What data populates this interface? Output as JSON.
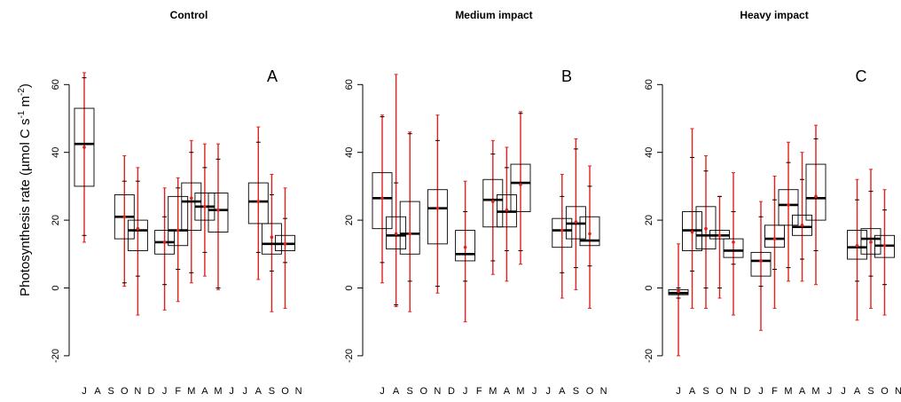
{
  "chart_data": {
    "type": "boxplot",
    "ylabel": {
      "main": "Photosynthesis rate (µmol C s",
      "sup1": "-1",
      "mid": " m",
      "sup2": "-2",
      "end": ")"
    },
    "ylim": [
      -25,
      75
    ],
    "yticks": [
      -20,
      0,
      20,
      40,
      60
    ],
    "box_color": "#000000",
    "mean_color": "#e0201b",
    "panels": [
      {
        "title": "Control",
        "letter": "A",
        "x_labels": [
          "J",
          "A",
          "S",
          "O",
          "N",
          "D",
          "J",
          "F",
          "M",
          "A",
          "M",
          "J",
          "J",
          "A",
          "S",
          "O",
          "N"
        ],
        "boxes": [
          {
            "i": 0,
            "q1": 30,
            "median": 42.5,
            "q3": 53,
            "wlo": 15.5,
            "whi": 62,
            "rlo": 13.5,
            "rhi": 63.5,
            "mean": 41.5
          },
          {
            "i": 3,
            "q1": 14.5,
            "median": 21,
            "q3": 27.5,
            "wlo": 1.5,
            "whi": 31.5,
            "rlo": 0.5,
            "rhi": 39,
            "mean": 21
          },
          {
            "i": 4,
            "q1": 11,
            "median": 17,
            "q3": 20,
            "wlo": 3.5,
            "whi": 31.5,
            "rlo": -8,
            "rhi": 35.5,
            "mean": 17.5
          },
          {
            "i": 6,
            "q1": 10,
            "median": 13.5,
            "q3": 17,
            "wlo": 1,
            "whi": 21,
            "rlo": -6.5,
            "rhi": 29.5,
            "mean": 13.5
          },
          {
            "i": 7,
            "q1": 12.5,
            "median": 17,
            "q3": 27,
            "wlo": 5.5,
            "whi": 29.5,
            "rlo": -4,
            "rhi": 32.5,
            "mean": 17
          },
          {
            "i": 8,
            "q1": 17,
            "median": 25.5,
            "q3": 31,
            "wlo": 4.5,
            "whi": 40,
            "rlo": 1.5,
            "rhi": 43.5,
            "mean": 26.5
          },
          {
            "i": 9,
            "q1": 20,
            "median": 24,
            "q3": 28,
            "wlo": 10.5,
            "whi": 35.5,
            "rlo": 3.5,
            "rhi": 42.5,
            "mean": 24
          },
          {
            "i": 10,
            "q1": 16.5,
            "median": 23,
            "q3": 28,
            "wlo": 0,
            "whi": 38,
            "rlo": -0.5,
            "rhi": 42.5,
            "mean": 23
          },
          {
            "i": 13,
            "q1": 19,
            "median": 25.5,
            "q3": 31,
            "wlo": 10.5,
            "whi": 43,
            "rlo": 2.5,
            "rhi": 47.5,
            "mean": 25.5
          },
          {
            "i": 14,
            "q1": 10,
            "median": 13,
            "q3": 19,
            "wlo": 5,
            "whi": 27.5,
            "rlo": -7,
            "rhi": 33.5,
            "mean": 15
          },
          {
            "i": 15,
            "q1": 11,
            "median": 13,
            "q3": 15.5,
            "wlo": 7.5,
            "whi": 20.5,
            "rlo": -6,
            "rhi": 29.5,
            "mean": 13
          }
        ]
      },
      {
        "title": "Medium impact",
        "letter": "B",
        "x_labels": [
          "J",
          "A",
          "S",
          "O",
          "N",
          "D",
          "J",
          "F",
          "M",
          "A",
          "M",
          "J",
          "J",
          "A",
          "S",
          "O",
          "N"
        ],
        "boxes": [
          {
            "i": 0,
            "q1": 17.5,
            "median": 26.5,
            "q3": 34,
            "wlo": 7.5,
            "whi": 50.5,
            "rlo": 1.5,
            "rhi": 51,
            "mean": 26.5
          },
          {
            "i": 1,
            "q1": 11.5,
            "median": 15.5,
            "q3": 21,
            "wlo": -5,
            "whi": 31,
            "rlo": -5.5,
            "rhi": 63,
            "mean": 16
          },
          {
            "i": 2,
            "q1": 10,
            "median": 16,
            "q3": 25.5,
            "wlo": 2,
            "whi": 45.5,
            "rlo": -7,
            "rhi": 46,
            "mean": 16
          },
          {
            "i": 4,
            "q1": 13,
            "median": 23.5,
            "q3": 29,
            "wlo": 0.5,
            "whi": 43.5,
            "rlo": -1.5,
            "rhi": 51,
            "mean": 23.5
          },
          {
            "i": 6,
            "q1": 8,
            "median": 10,
            "q3": 17,
            "wlo": 2,
            "whi": 22.5,
            "rlo": -10,
            "rhi": 31.5,
            "mean": 12
          },
          {
            "i": 8,
            "q1": 18,
            "median": 26,
            "q3": 32,
            "wlo": 8,
            "whi": 39.5,
            "rlo": 4,
            "rhi": 43.5,
            "mean": 25.5
          },
          {
            "i": 9,
            "q1": 18,
            "median": 22.5,
            "q3": 27.5,
            "wlo": 11,
            "whi": 35.5,
            "rlo": 2,
            "rhi": 41.5,
            "mean": 23
          },
          {
            "i": 10,
            "q1": 22.5,
            "median": 31,
            "q3": 36.5,
            "wlo": 11,
            "whi": 51.5,
            "rlo": 7,
            "rhi": 52,
            "mean": 30.5
          },
          {
            "i": 13,
            "q1": 12,
            "median": 17,
            "q3": 20.5,
            "wlo": 4.5,
            "whi": 27,
            "rlo": -3,
            "rhi": 33.5,
            "mean": 17
          },
          {
            "i": 14,
            "q1": 14.5,
            "median": 19,
            "q3": 24,
            "wlo": 6,
            "whi": 41,
            "rlo": -0.5,
            "rhi": 44,
            "mean": 19.5
          },
          {
            "i": 15,
            "q1": 12.5,
            "median": 14,
            "q3": 21,
            "wlo": 6.5,
            "whi": 30,
            "rlo": -6,
            "rhi": 36,
            "mean": 16
          }
        ]
      },
      {
        "title": "Heavy impact",
        "letter": "C",
        "x_labels": [
          "J",
          "A",
          "S",
          "O",
          "N",
          "D",
          "J",
          "F",
          "M",
          "A",
          "M",
          "J",
          "J",
          "A",
          "S",
          "O",
          "N"
        ],
        "boxes": [
          {
            "i": 0,
            "q1": -2,
            "median": -1.5,
            "q3": -0.5,
            "wlo": -3,
            "whi": 0,
            "rlo": -20,
            "rhi": 13,
            "mean": -1
          },
          {
            "i": 1,
            "q1": 11,
            "median": 17,
            "q3": 22.5,
            "wlo": 5,
            "whi": 38.5,
            "rlo": -6,
            "rhi": 47,
            "mean": 16.5
          },
          {
            "i": 2,
            "q1": 11.5,
            "median": 15.5,
            "q3": 24,
            "wlo": 0,
            "whi": 34.5,
            "rlo": -6,
            "rhi": 39,
            "mean": 17.5
          },
          {
            "i": 3,
            "q1": 14.5,
            "median": 15.5,
            "q3": 17,
            "wlo": 0,
            "whi": 27,
            "rlo": -3,
            "rhi": 27,
            "mean": 15.5
          },
          {
            "i": 4,
            "q1": 9,
            "median": 11,
            "q3": 14.5,
            "wlo": 7,
            "whi": 22.5,
            "rlo": -8,
            "rhi": 34,
            "mean": 13.5
          },
          {
            "i": 6,
            "q1": 3.5,
            "median": 8,
            "q3": 10.5,
            "wlo": 0.5,
            "whi": 21,
            "rlo": -12.5,
            "rhi": 25.5,
            "mean": 8
          },
          {
            "i": 7,
            "q1": 12,
            "median": 14.5,
            "q3": 18.5,
            "wlo": 5.5,
            "whi": 26,
            "rlo": -6,
            "rhi": 33,
            "mean": 14.5
          },
          {
            "i": 8,
            "q1": 18.5,
            "median": 24.5,
            "q3": 29,
            "wlo": 6,
            "whi": 37,
            "rlo": 2,
            "rhi": 43,
            "mean": 24.5
          },
          {
            "i": 9,
            "q1": 15.5,
            "median": 18,
            "q3": 21.5,
            "wlo": 8.5,
            "whi": 32,
            "rlo": 2,
            "rhi": 40,
            "mean": 18.5
          },
          {
            "i": 10,
            "q1": 20,
            "median": 26.5,
            "q3": 36.5,
            "wlo": 11,
            "whi": 44,
            "rlo": 1,
            "rhi": 48,
            "mean": 27
          },
          {
            "i": 13,
            "q1": 8.5,
            "median": 12,
            "q3": 17,
            "wlo": 2,
            "whi": 26,
            "rlo": -9.5,
            "rhi": 32,
            "mean": 12.5
          },
          {
            "i": 14,
            "q1": 10,
            "median": 14.5,
            "q3": 17.5,
            "wlo": 3.5,
            "whi": 28.5,
            "rlo": -6,
            "rhi": 35,
            "mean": 13.5
          },
          {
            "i": 15,
            "q1": 9,
            "median": 12.5,
            "q3": 15.5,
            "wlo": 1,
            "whi": 23,
            "rlo": -8,
            "rhi": 29,
            "mean": 12.5
          }
        ]
      }
    ]
  }
}
